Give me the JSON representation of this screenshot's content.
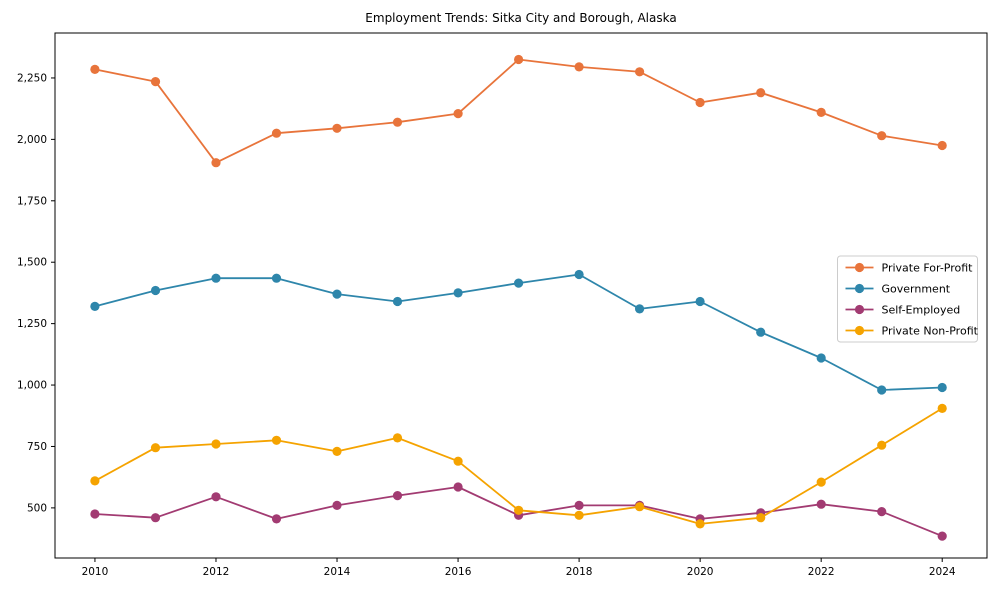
{
  "title": "Employment Trends: Sitka City and Borough, Alaska",
  "chart_data": {
    "type": "line",
    "title": "Employment Trends: Sitka City and Borough, Alaska",
    "xlabel": "",
    "ylabel": "",
    "grid": false,
    "legend_position": "center-right",
    "x": [
      2010,
      2011,
      2012,
      2013,
      2014,
      2015,
      2016,
      2017,
      2018,
      2019,
      2020,
      2021,
      2022,
      2023,
      2024
    ],
    "series": [
      {
        "name": "Private For-Profit",
        "color": "#E8743B",
        "values": [
          2285,
          2235,
          1905,
          2025,
          2045,
          2070,
          2105,
          2325,
          2295,
          2275,
          2150,
          2190,
          2110,
          2015,
          1975
        ]
      },
      {
        "name": "Government",
        "color": "#2E86AB",
        "values": [
          1320,
          1385,
          1435,
          1435,
          1370,
          1340,
          1375,
          1415,
          1450,
          1310,
          1340,
          1215,
          1110,
          980,
          990
        ]
      },
      {
        "name": "Self-Employed",
        "color": "#A23B72",
        "values": [
          475,
          460,
          545,
          455,
          510,
          550,
          585,
          470,
          510,
          510,
          455,
          480,
          515,
          485,
          385
        ]
      },
      {
        "name": "Private Non-Profit",
        "color": "#F5A300",
        "values": [
          610,
          745,
          760,
          775,
          730,
          785,
          690,
          490,
          470,
          505,
          435,
          460,
          605,
          755,
          905
        ]
      }
    ],
    "xticks": [
      2010,
      2012,
      2014,
      2016,
      2018,
      2020,
      2022,
      2024
    ],
    "xtick_labels": [
      "2010",
      "2012",
      "2014",
      "2016",
      "2018",
      "2020",
      "2022",
      "2024"
    ],
    "yticks": [
      500,
      750,
      1000,
      1250,
      1500,
      1750,
      2000,
      2250
    ],
    "ytick_labels": [
      "500",
      "750",
      "1,000",
      "1,250",
      "1,500",
      "1,750",
      "2,000",
      "2,250"
    ],
    "xlim": [
      2009.34,
      2024.74
    ],
    "ylim": [
      296,
      2433
    ],
    "axis_color": "#000000",
    "tick_label_color": "#000000",
    "legend_border_color": "#cccccc",
    "legend_bg_color": "#ffffff"
  }
}
